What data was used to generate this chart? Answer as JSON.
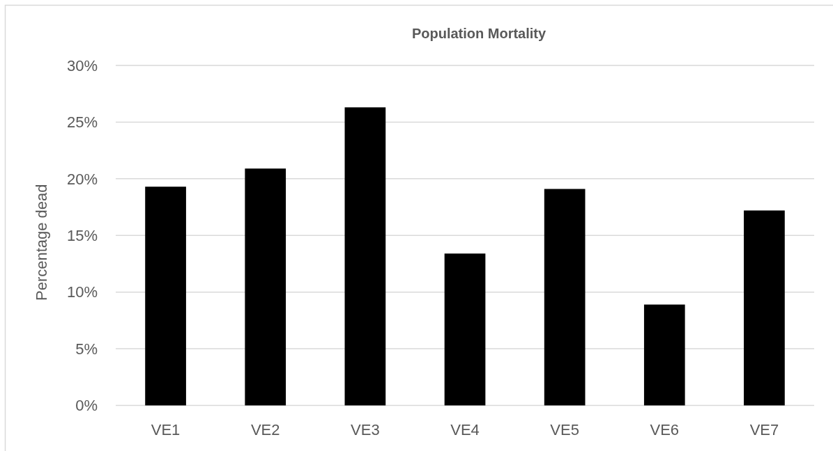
{
  "chart_data": {
    "type": "bar",
    "title": "Population Mortality",
    "ylabel": "Percentage dead",
    "categories": [
      "VE1",
      "VE2",
      "VE3",
      "VE4",
      "VE5",
      "VE6",
      "VE7"
    ],
    "values": [
      19.3,
      20.9,
      26.3,
      13.4,
      19.1,
      8.9,
      17.2
    ],
    "color": "#000000",
    "ylim": [
      0,
      30
    ],
    "yticks": [
      {
        "value": 0,
        "label": "0%"
      },
      {
        "value": 5,
        "label": "5%"
      },
      {
        "value": 10,
        "label": "10%"
      },
      {
        "value": 15,
        "label": "15%"
      },
      {
        "value": 20,
        "label": "20%"
      },
      {
        "value": 25,
        "label": "25%"
      },
      {
        "value": 30,
        "label": "30%"
      }
    ],
    "grid": "y"
  }
}
